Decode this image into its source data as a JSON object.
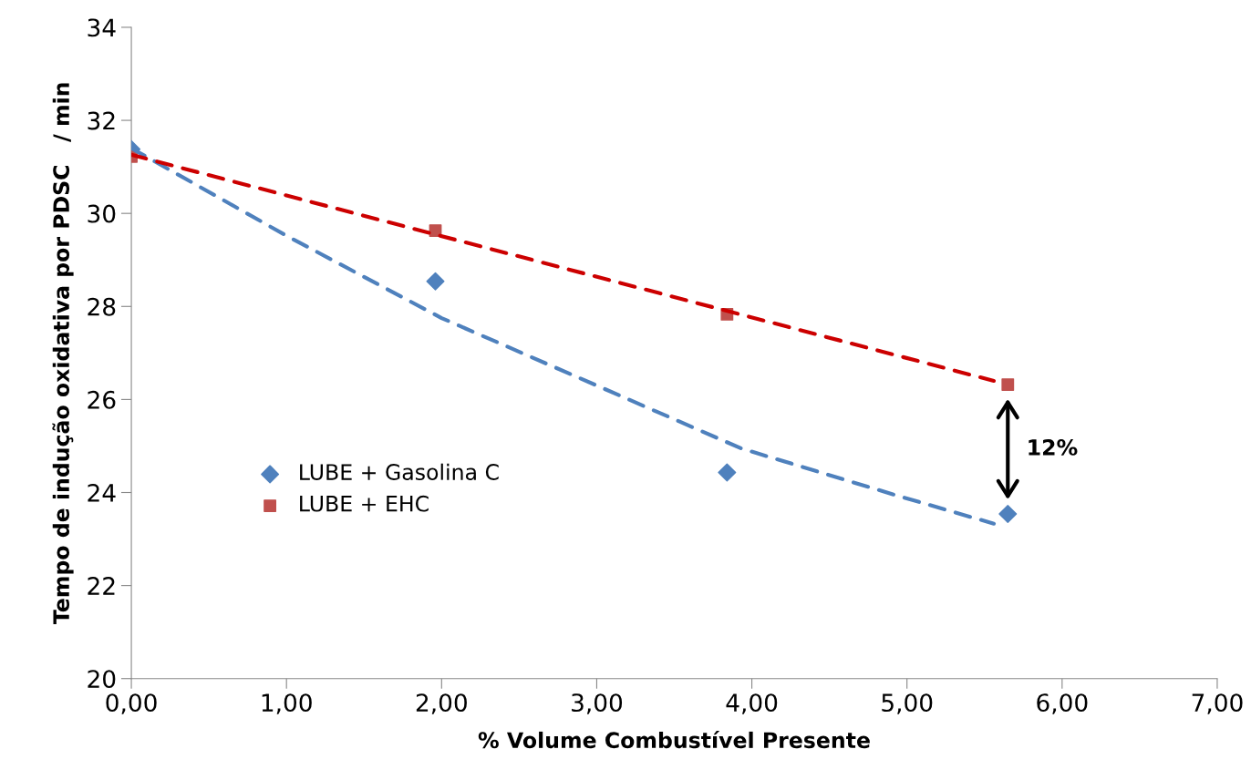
{
  "chart_data": {
    "type": "scatter",
    "xlabel": "% Volume Combustível Presente",
    "ylabel": "Tempo de indução oxidativa por PDSC   / min",
    "xlim": [
      0,
      7
    ],
    "ylim": [
      20,
      34
    ],
    "xticks": [
      {
        "value": 0,
        "label": "0,00"
      },
      {
        "value": 1,
        "label": "1,00"
      },
      {
        "value": 2,
        "label": "2,00"
      },
      {
        "value": 3,
        "label": "3,00"
      },
      {
        "value": 4,
        "label": "4,00"
      },
      {
        "value": 5,
        "label": "5,00"
      },
      {
        "value": 6,
        "label": "6,00"
      },
      {
        "value": 7,
        "label": "7,00"
      }
    ],
    "yticks": [
      20,
      22,
      24,
      26,
      28,
      30,
      32,
      34
    ],
    "grid": false,
    "legend": "center left",
    "series": [
      {
        "name": "LUBE + Gasolina C",
        "marker": "diamond",
        "color": "#4f81bd",
        "x": [
          0,
          1.96,
          3.84,
          5.65
        ],
        "values": [
          31.38,
          28.54,
          24.43,
          23.54
        ]
      },
      {
        "name": "LUBE + EHC",
        "marker": "square",
        "color": "#c0504d",
        "x": [
          0,
          1.96,
          3.84,
          5.65
        ],
        "values": [
          31.22,
          29.63,
          27.83,
          26.32
        ]
      },
      {
        "type": "line",
        "line_style": "dashed",
        "marker": "none",
        "color": "#4f81bd",
        "x": [
          0,
          1,
          2,
          3,
          3.93,
          4.93,
          5.56
        ],
        "values": [
          31.4,
          29.52,
          27.75,
          26.3,
          24.95,
          23.94,
          23.33
        ]
      },
      {
        "type": "line",
        "line_style": "dashed",
        "marker": "none",
        "color": "#cc0000",
        "x": [
          0,
          5.56
        ],
        "values": [
          31.26,
          26.4
        ]
      }
    ],
    "annotations": [
      "12%"
    ]
  }
}
